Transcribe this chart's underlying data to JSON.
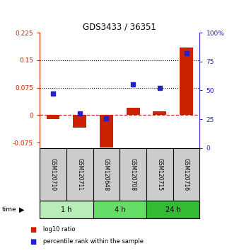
{
  "title": "GDS3433 / 36351",
  "samples": [
    "GSM120710",
    "GSM120711",
    "GSM120648",
    "GSM120708",
    "GSM120715",
    "GSM120716"
  ],
  "log10_ratio": [
    -0.01,
    -0.035,
    -0.088,
    0.02,
    0.01,
    0.185
  ],
  "percentile_rank": [
    47,
    30,
    26,
    55,
    52,
    82
  ],
  "time_groups": [
    {
      "label": "1 h",
      "start": 0,
      "end": 2,
      "color": "#b8ecb8"
    },
    {
      "label": "4 h",
      "start": 2,
      "end": 4,
      "color": "#66dd66"
    },
    {
      "label": "24 h",
      "start": 4,
      "end": 6,
      "color": "#33bb33"
    }
  ],
  "left_ylim": [
    -0.09,
    0.225
  ],
  "right_ylim": [
    0,
    100
  ],
  "left_yticks": [
    -0.075,
    0,
    0.075,
    0.15,
    0.225
  ],
  "right_yticks": [
    0,
    25,
    50,
    75,
    100
  ],
  "left_ytick_labels": [
    "-0.075",
    "0",
    "0.075",
    "0.15",
    "0.225"
  ],
  "right_ytick_labels": [
    "0",
    "25",
    "50",
    "75",
    "100%"
  ],
  "hlines": [
    0.075,
    0.15
  ],
  "bar_color": "#cc2200",
  "marker_color": "#2222cc",
  "zero_line_color": "#cc3333",
  "bg_color": "#ffffff",
  "plot_bg_color": "#ffffff",
  "bar_width": 0.5,
  "legend_items": [
    "log10 ratio",
    "percentile rank within the sample"
  ],
  "sample_bg": "#cccccc",
  "spine_color": "#000000"
}
